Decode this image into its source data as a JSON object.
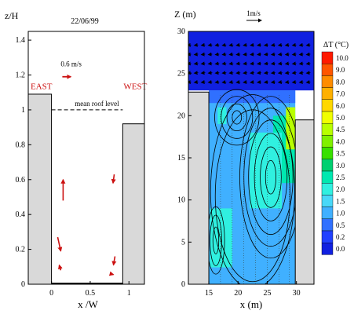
{
  "chart_data": [
    {
      "type": "scatter",
      "panel": "left",
      "title": "22/06/99",
      "xlabel": "x /W",
      "ylabel": "z/H",
      "xlim": [
        -0.3,
        1.2
      ],
      "ylim": [
        0,
        1.45
      ],
      "xticks": [
        0,
        0.5,
        1
      ],
      "xtick_labels": [
        "0",
        "0.5",
        "1"
      ],
      "yticks": [
        0,
        0.2,
        0.4,
        0.6,
        0.8,
        1.0,
        1.2,
        1.4
      ],
      "ytick_labels": [
        "0",
        "0.2",
        "0.4",
        "0.6",
        "0.8",
        "1",
        "1.2",
        "1.4"
      ],
      "buildings": [
        {
          "x0": -0.3,
          "x1": 0.0,
          "height": 1.09
        },
        {
          "x0": 0.92,
          "x1": 1.2,
          "height": 0.92
        }
      ],
      "mean_roof_level": 1.0,
      "mean_roof_label": "mean roof level",
      "labels": {
        "east": "EAST",
        "west": "WEST"
      },
      "reference_arrow": {
        "label": "0.6 m/s",
        "x": 0.14,
        "z": 1.19,
        "dx": 0.11,
        "dz": 0.0
      },
      "vectors": [
        {
          "x": 0.15,
          "z": 0.48,
          "dx": 0.0,
          "dz": 0.12
        },
        {
          "x": 0.81,
          "z": 0.63,
          "dx": -0.015,
          "dz": -0.05
        },
        {
          "x": 0.08,
          "z": 0.27,
          "dx": 0.04,
          "dz": -0.08
        },
        {
          "x": 0.82,
          "z": 0.16,
          "dx": -0.02,
          "dz": -0.05
        },
        {
          "x": 0.12,
          "z": 0.08,
          "dx": -0.02,
          "dz": 0.03
        },
        {
          "x": 0.76,
          "z": 0.06,
          "dx": 0.04,
          "dz": -0.005
        }
      ]
    },
    {
      "type": "heatmap",
      "panel": "right",
      "xlabel": "x (m)",
      "ylabel": "Z (m)",
      "xlim": [
        11.5,
        33
      ],
      "ylim": [
        0,
        30
      ],
      "xticks": [
        15,
        20,
        25,
        30
      ],
      "xtick_labels": [
        "15",
        "20",
        "25",
        "30"
      ],
      "yticks": [
        0,
        5,
        10,
        15,
        20,
        25,
        30
      ],
      "ytick_labels": [
        "0",
        "5",
        "10",
        "15",
        "20",
        "25",
        "30"
      ],
      "reference_vector": {
        "label": "1m/s"
      },
      "buildings": [
        {
          "x0": 11.5,
          "x1": 15.0,
          "height": 22.8
        },
        {
          "x0": 29.8,
          "x1": 33.0,
          "height": 19.5
        }
      ],
      "colorbar": {
        "title": "ΔT (°C)",
        "levels": [
          10.0,
          9.0,
          8.0,
          7.0,
          6.0,
          5.0,
          4.5,
          4.0,
          3.5,
          3.0,
          2.5,
          2.0,
          1.5,
          1.0,
          0.5,
          0.2,
          0.0
        ],
        "level_labels": [
          "10.0",
          "9.0",
          "8.0",
          "7.0",
          "6.0",
          "5.0",
          "4.5",
          "4.0",
          "3.5",
          "3.0",
          "2.5",
          "2.0",
          "1.5",
          "1.0",
          "0.5",
          "0.2",
          "0.0"
        ],
        "colors": [
          "#ff1a00",
          "#ff5500",
          "#ff8c00",
          "#ffb000",
          "#ffd800",
          "#f0ff00",
          "#b8ff00",
          "#80f000",
          "#38e000",
          "#00d070",
          "#00e8b0",
          "#30f0e0",
          "#48d8f8",
          "#40b0ff",
          "#3070ff",
          "#2040ff",
          "#1020e0"
        ]
      },
      "temperature_regions": [
        {
          "x0": 15.0,
          "x1": 29.8,
          "z0": 0.0,
          "z1": 23.0,
          "dT": 1.2
        },
        {
          "x0": 11.5,
          "x1": 33.0,
          "z0": 23.0,
          "z1": 30.0,
          "dT": 0.1
        },
        {
          "x0": 15.0,
          "x1": 29.8,
          "z0": 21.5,
          "z1": 23.0,
          "dT": 0.5
        },
        {
          "x0": 26.0,
          "x1": 29.8,
          "z0": 12.0,
          "z1": 20.0,
          "dT": 2.6
        },
        {
          "x0": 28.2,
          "x1": 29.8,
          "z0": 16.0,
          "z1": 21.0,
          "dT": 4.6
        },
        {
          "x0": 15.2,
          "x1": 19.0,
          "z0": 2.0,
          "z1": 9.0,
          "dT": 2.3
        },
        {
          "x0": 22.0,
          "x1": 27.5,
          "z0": 9.0,
          "z1": 18.0,
          "dT": 2.2
        },
        {
          "x0": 16.5,
          "x1": 18.0,
          "z0": 19.0,
          "z1": 21.0,
          "dT": 2.0
        }
      ],
      "vortex_centers": [
        {
          "x": 19.8,
          "z": 19.8
        },
        {
          "x": 25.6,
          "z": 12.7
        },
        {
          "x": 16.2,
          "z": 5.2
        }
      ]
    }
  ]
}
